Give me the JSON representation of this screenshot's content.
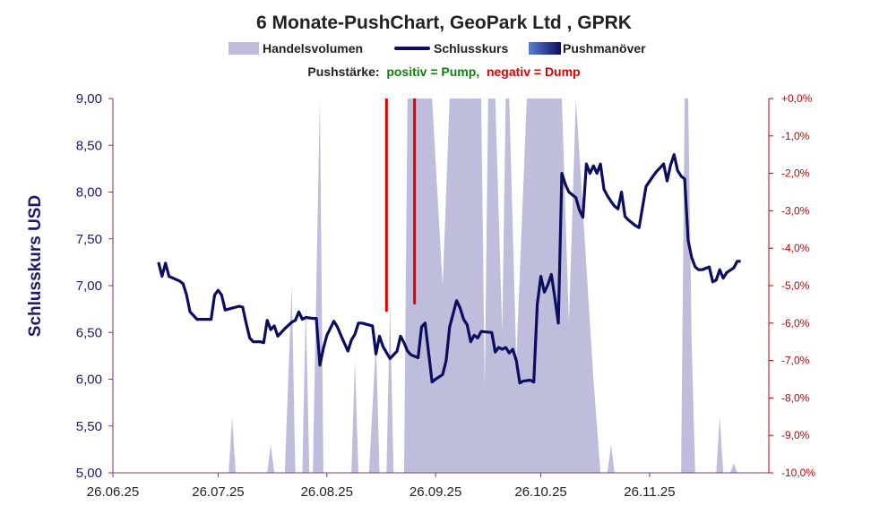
{
  "chart_data": {
    "type": "line",
    "title": "6 Monate-PushChart, GeoPark Ltd  , GPRK",
    "legend": {
      "volume": "Handelsvolumen",
      "close": "Schlusskurs",
      "push": "Pushmanöver"
    },
    "push_note": {
      "label": "Pushstärke:",
      "positive": "positiv = Pump,",
      "negative": "negativ = Dump"
    },
    "ylabel": "Schlusskurs USD",
    "ylim": [
      5.0,
      9.0
    ],
    "y_ticks": [
      "5,00",
      "5,50",
      "6,00",
      "6,50",
      "7,00",
      "7,50",
      "8,00",
      "8,50",
      "9,00"
    ],
    "y2lim": [
      -10.0,
      0.0
    ],
    "y2_ticks": [
      "-10,0%",
      "-9,0%",
      "-8,0%",
      "-7,0%",
      "-6,0%",
      "-5,0%",
      "-4,0%",
      "-3,0%",
      "-2,0%",
      "-1,0%",
      "+0,0%"
    ],
    "x_ticks": [
      "26.06.25",
      "26.07.25",
      "26.08.25",
      "26.09.25",
      "26.10.25",
      "26.11.25"
    ],
    "xlim": [
      "2025-06-26",
      "2025-12-30"
    ],
    "colors": {
      "close": "#0d0d5f",
      "volume": "#bebedc",
      "dump": "#e00000",
      "pump": "#108010",
      "axis_right": "#c00000"
    },
    "series": [
      {
        "name": "Schlusskurs",
        "points": [
          [
            "2025-07-09",
            7.25
          ],
          [
            "2025-07-10",
            7.1
          ],
          [
            "2025-07-11",
            7.24
          ],
          [
            "2025-07-12",
            7.1
          ],
          [
            "2025-07-15",
            7.05
          ],
          [
            "2025-07-16",
            7.02
          ],
          [
            "2025-07-17",
            6.9
          ],
          [
            "2025-07-18",
            6.72
          ],
          [
            "2025-07-19",
            6.68
          ],
          [
            "2025-07-20",
            6.64
          ],
          [
            "2025-07-23",
            6.64
          ],
          [
            "2025-07-24",
            6.64
          ],
          [
            "2025-07-25",
            6.9
          ],
          [
            "2025-07-26",
            6.95
          ],
          [
            "2025-07-27",
            6.9
          ],
          [
            "2025-07-28",
            6.74
          ],
          [
            "2025-07-30",
            6.76
          ],
          [
            "2025-08-01",
            6.78
          ],
          [
            "2025-08-02",
            6.77
          ],
          [
            "2025-08-03",
            6.6
          ],
          [
            "2025-08-04",
            6.44
          ],
          [
            "2025-08-05",
            6.4
          ],
          [
            "2025-08-07",
            6.4
          ],
          [
            "2025-08-08",
            6.39
          ],
          [
            "2025-08-09",
            6.63
          ],
          [
            "2025-08-10",
            6.53
          ],
          [
            "2025-08-11",
            6.57
          ],
          [
            "2025-08-12",
            6.46
          ],
          [
            "2025-08-14",
            6.54
          ],
          [
            "2025-08-16",
            6.61
          ],
          [
            "2025-08-17",
            6.63
          ],
          [
            "2025-08-18",
            6.72
          ],
          [
            "2025-08-19",
            6.64
          ],
          [
            "2025-08-20",
            6.66
          ],
          [
            "2025-08-22",
            6.65
          ],
          [
            "2025-08-23",
            6.65
          ],
          [
            "2025-08-24",
            6.15
          ],
          [
            "2025-08-25",
            6.33
          ],
          [
            "2025-08-26",
            6.47
          ],
          [
            "2025-08-28",
            6.62
          ],
          [
            "2025-08-29",
            6.56
          ],
          [
            "2025-08-30",
            6.47
          ],
          [
            "2025-09-01",
            6.3
          ],
          [
            "2025-09-02",
            6.42
          ],
          [
            "2025-09-03",
            6.48
          ],
          [
            "2025-09-04",
            6.6
          ],
          [
            "2025-09-05",
            6.6
          ],
          [
            "2025-09-08",
            6.57
          ],
          [
            "2025-09-09",
            6.27
          ],
          [
            "2025-09-10",
            6.46
          ],
          [
            "2025-09-11",
            6.35
          ],
          [
            "2025-09-13",
            6.22
          ],
          [
            "2025-09-15",
            6.3
          ],
          [
            "2025-09-16",
            6.46
          ],
          [
            "2025-09-17",
            6.39
          ],
          [
            "2025-09-18",
            6.3
          ],
          [
            "2025-09-19",
            6.26
          ],
          [
            "2025-09-21",
            6.23
          ],
          [
            "2025-09-22",
            6.56
          ],
          [
            "2025-09-23",
            6.6
          ],
          [
            "2025-09-25",
            5.97
          ],
          [
            "2025-09-26",
            6.0
          ],
          [
            "2025-09-28",
            6.05
          ],
          [
            "2025-09-29",
            6.2
          ],
          [
            "2025-09-30",
            6.56
          ],
          [
            "2025-10-02",
            6.84
          ],
          [
            "2025-10-03",
            6.76
          ],
          [
            "2025-10-04",
            6.64
          ],
          [
            "2025-10-05",
            6.58
          ],
          [
            "2025-10-06",
            6.4
          ],
          [
            "2025-10-07",
            6.47
          ],
          [
            "2025-10-08",
            6.44
          ],
          [
            "2025-10-09",
            6.51
          ],
          [
            "2025-10-12",
            6.5
          ],
          [
            "2025-10-13",
            6.29
          ],
          [
            "2025-10-14",
            6.34
          ],
          [
            "2025-10-15",
            6.32
          ],
          [
            "2025-10-16",
            6.34
          ],
          [
            "2025-10-17",
            6.28
          ],
          [
            "2025-10-18",
            6.32
          ],
          [
            "2025-10-19",
            6.2
          ],
          [
            "2025-10-20",
            5.96
          ],
          [
            "2025-10-21",
            5.98
          ],
          [
            "2025-10-23",
            5.99
          ],
          [
            "2025-10-24",
            5.97
          ],
          [
            "2025-10-25",
            6.8
          ],
          [
            "2025-10-26",
            7.1
          ],
          [
            "2025-10-27",
            6.93
          ],
          [
            "2025-10-28",
            7.01
          ],
          [
            "2025-10-29",
            7.12
          ],
          [
            "2025-10-30",
            6.87
          ],
          [
            "2025-10-31",
            6.6
          ],
          [
            "2025-11-01",
            8.2
          ],
          [
            "2025-11-02",
            8.08
          ],
          [
            "2025-11-03",
            8.0
          ],
          [
            "2025-11-05",
            7.94
          ],
          [
            "2025-11-06",
            7.81
          ],
          [
            "2025-11-07",
            7.73
          ],
          [
            "2025-11-08",
            8.3
          ],
          [
            "2025-11-09",
            8.2
          ],
          [
            "2025-11-10",
            8.28
          ],
          [
            "2025-11-11",
            8.2
          ],
          [
            "2025-11-12",
            8.3
          ],
          [
            "2025-11-13",
            8.03
          ],
          [
            "2025-11-14",
            7.96
          ],
          [
            "2025-11-15",
            7.9
          ],
          [
            "2025-11-16",
            7.85
          ],
          [
            "2025-11-17",
            7.82
          ],
          [
            "2025-11-18",
            8.0
          ],
          [
            "2025-11-19",
            7.74
          ],
          [
            "2025-11-20",
            7.7
          ],
          [
            "2025-11-22",
            7.64
          ],
          [
            "2025-11-23",
            7.62
          ],
          [
            "2025-11-24",
            7.84
          ],
          [
            "2025-11-25",
            8.06
          ],
          [
            "2025-11-27",
            8.17
          ],
          [
            "2025-11-28",
            8.22
          ],
          [
            "2025-11-29",
            8.26
          ],
          [
            "2025-11-30",
            8.3
          ],
          [
            "2025-12-01",
            8.12
          ],
          [
            "2025-12-02",
            8.29
          ],
          [
            "2025-12-03",
            8.4
          ],
          [
            "2025-12-04",
            8.23
          ],
          [
            "2025-12-05",
            8.17
          ],
          [
            "2025-12-06",
            8.14
          ],
          [
            "2025-12-07",
            7.48
          ],
          [
            "2025-12-08",
            7.3
          ],
          [
            "2025-12-09",
            7.2
          ],
          [
            "2025-12-10",
            7.17
          ],
          [
            "2025-12-11",
            7.17
          ],
          [
            "2025-12-13",
            7.2
          ],
          [
            "2025-12-14",
            7.04
          ],
          [
            "2025-12-15",
            7.06
          ],
          [
            "2025-12-16",
            7.17
          ],
          [
            "2025-12-17",
            7.08
          ],
          [
            "2025-12-18",
            7.14
          ],
          [
            "2025-12-20",
            7.19
          ],
          [
            "2025-12-21",
            7.26
          ],
          [
            "2025-12-22",
            7.26
          ]
        ]
      },
      {
        "name": "Handelsvolumen",
        "points": [
          [
            "2025-06-26",
            5.0
          ],
          [
            "2025-07-29",
            5.0
          ],
          [
            "2025-07-30",
            5.6
          ],
          [
            "2025-07-31",
            5.0
          ],
          [
            "2025-08-09",
            5.0
          ],
          [
            "2025-08-10",
            5.3
          ],
          [
            "2025-08-11",
            5.0
          ],
          [
            "2025-08-14",
            5.0
          ],
          [
            "2025-08-16",
            7.0
          ],
          [
            "2025-08-17",
            5.0
          ],
          [
            "2025-08-19",
            5.0
          ],
          [
            "2025-08-20",
            6.8
          ],
          [
            "2025-08-21",
            5.0
          ],
          [
            "2025-08-22",
            5.0
          ],
          [
            "2025-08-24",
            9.0
          ],
          [
            "2025-08-25",
            5.0
          ],
          [
            "2025-09-02",
            5.0
          ],
          [
            "2025-09-03",
            6.2
          ],
          [
            "2025-09-04",
            5.0
          ],
          [
            "2025-09-07",
            5.0
          ],
          [
            "2025-09-09",
            6.4
          ],
          [
            "2025-09-10",
            5.0
          ],
          [
            "2025-09-12",
            5.0
          ],
          [
            "2025-09-13",
            6.8
          ],
          [
            "2025-09-14",
            5.0
          ],
          [
            "2025-09-17",
            5.0
          ],
          [
            "2025-09-18",
            9.0
          ],
          [
            "2025-09-25",
            9.0
          ],
          [
            "2025-09-28",
            7.0
          ],
          [
            "2025-09-30",
            9.0
          ],
          [
            "2025-10-09",
            9.0
          ],
          [
            "2025-10-10",
            5.9
          ],
          [
            "2025-10-11",
            9.0
          ],
          [
            "2025-10-13",
            9.0
          ],
          [
            "2025-10-15",
            6.5
          ],
          [
            "2025-10-16",
            9.0
          ],
          [
            "2025-10-17",
            9.0
          ],
          [
            "2025-10-19",
            6.2
          ],
          [
            "2025-10-22",
            9.0
          ],
          [
            "2025-11-01",
            9.0
          ],
          [
            "2025-11-03",
            6.6
          ],
          [
            "2025-11-05",
            9.0
          ],
          [
            "2025-11-10",
            6.0
          ],
          [
            "2025-11-12",
            5.0
          ],
          [
            "2025-11-14",
            5.0
          ],
          [
            "2025-11-15",
            5.3
          ],
          [
            "2025-11-16",
            5.0
          ],
          [
            "2025-12-05",
            5.0
          ],
          [
            "2025-12-06",
            9.0
          ],
          [
            "2025-12-07",
            9.0
          ],
          [
            "2025-12-08",
            6.4
          ],
          [
            "2025-12-09",
            5.0
          ],
          [
            "2025-12-15",
            5.0
          ],
          [
            "2025-12-16",
            5.6
          ],
          [
            "2025-12-17",
            5.0
          ],
          [
            "2025-12-19",
            5.0
          ],
          [
            "2025-12-20",
            5.1
          ],
          [
            "2025-12-21",
            5.0
          ],
          [
            "2025-12-30",
            5.0
          ]
        ]
      },
      {
        "name": "Pushmanöver",
        "points": [
          [
            "2025-09-12",
            -5.7
          ],
          [
            "2025-09-20",
            -5.5
          ]
        ]
      }
    ]
  }
}
